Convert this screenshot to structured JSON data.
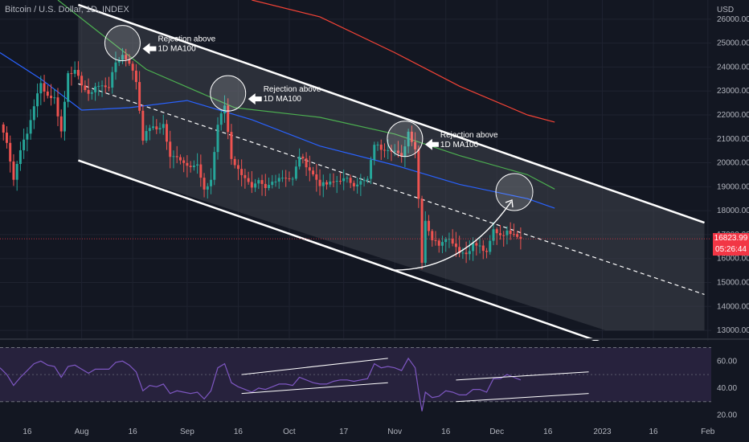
{
  "symbol": {
    "title": "Bitcoin / U.S. Dollar, 1D, INDEX",
    "currency": "USD"
  },
  "price_tag": {
    "price": "16823.99",
    "countdown": "05:26:44"
  },
  "colors": {
    "background": "#131722",
    "up_candle": "#26a69a",
    "down_candle": "#ef5350",
    "channel_fill": "#40434c",
    "channel_line": "#ffffff",
    "ma_green": "#4caf50",
    "ma_blue": "#2962ff",
    "ma_red": "#f44336",
    "rsi_line": "#7e57c2",
    "rsi_band": "#2a2440",
    "price_tag": "#f23645"
  },
  "annotations": [
    {
      "label": [
        "Rejection above",
        "1D MA100"
      ],
      "date": "2022-08-13",
      "price": 25000
    },
    {
      "label": [
        "Rejection above",
        "1D MA100"
      ],
      "date": "2022-09-13",
      "price": 22900
    },
    {
      "label": [
        "Rejection above",
        "1D MA100"
      ],
      "date": "2022-11-04",
      "price": 21000
    }
  ],
  "chart_data": [
    {
      "type": "candlestick",
      "title": "Bitcoin / U.S. Dollar, 1D, INDEX",
      "x_start": "2022-07-08",
      "x_end": "2023-02-02",
      "x_ticks": [
        "16",
        "Aug",
        "16",
        "Sep",
        "16",
        "Oct",
        "17",
        "Nov",
        "16",
        "Dec",
        "16",
        "2023",
        "16",
        "Feb"
      ],
      "x_tick_dates": [
        "2022-07-16",
        "2022-08-01",
        "2022-08-16",
        "2022-09-01",
        "2022-09-16",
        "2022-10-01",
        "2022-10-17",
        "2022-11-01",
        "2022-11-16",
        "2022-12-01",
        "2022-12-16",
        "2023-01-01",
        "2023-01-16",
        "2023-02-01"
      ],
      "ylabel": "USD",
      "ylim": [
        12700,
        26800
      ],
      "y_ticks": [
        13000,
        14000,
        15000,
        16000,
        17000,
        18000,
        19000,
        20000,
        21000,
        22000,
        23000,
        24000,
        25000,
        26000
      ],
      "y_tick_labels": [
        "13000.00",
        "14000.00",
        "15000.00",
        "16000.00",
        "17000.00",
        "18000.00",
        "19000.00",
        "20000.00",
        "21000.00",
        "22000.00",
        "23000.00",
        "24000.00",
        "25000.00",
        "26000.00"
      ],
      "last_price": 16823.99,
      "close_series": [
        [
          "2022-07-08",
          21600
        ],
        [
          "2022-07-10",
          20900
        ],
        [
          "2022-07-12",
          19300
        ],
        [
          "2022-07-14",
          20600
        ],
        [
          "2022-07-16",
          21200
        ],
        [
          "2022-07-18",
          22400
        ],
        [
          "2022-07-20",
          23300
        ],
        [
          "2022-07-22",
          22800
        ],
        [
          "2022-07-24",
          22700
        ],
        [
          "2022-07-26",
          21300
        ],
        [
          "2022-07-28",
          23800
        ],
        [
          "2022-07-30",
          23800
        ],
        [
          "2022-08-01",
          23300
        ],
        [
          "2022-08-03",
          22800
        ],
        [
          "2022-08-05",
          23200
        ],
        [
          "2022-08-07",
          23200
        ],
        [
          "2022-08-09",
          23200
        ],
        [
          "2022-08-11",
          24200
        ],
        [
          "2022-08-13",
          24500
        ],
        [
          "2022-08-15",
          24200
        ],
        [
          "2022-08-17",
          23400
        ],
        [
          "2022-08-19",
          21000
        ],
        [
          "2022-08-21",
          21500
        ],
        [
          "2022-08-23",
          21400
        ],
        [
          "2022-08-25",
          21600
        ],
        [
          "2022-08-27",
          20200
        ],
        [
          "2022-08-29",
          20300
        ],
        [
          "2022-08-31",
          20000
        ],
        [
          "2022-09-02",
          19900
        ],
        [
          "2022-09-04",
          19900
        ],
        [
          "2022-09-06",
          18800
        ],
        [
          "2022-09-08",
          19300
        ],
        [
          "2022-09-10",
          21600
        ],
        [
          "2022-09-12",
          22400
        ],
        [
          "2022-09-14",
          20200
        ],
        [
          "2022-09-16",
          19700
        ],
        [
          "2022-09-18",
          19400
        ],
        [
          "2022-09-20",
          18900
        ],
        [
          "2022-09-22",
          19200
        ],
        [
          "2022-09-24",
          18900
        ],
        [
          "2022-09-26",
          19200
        ],
        [
          "2022-09-28",
          19400
        ],
        [
          "2022-09-30",
          19400
        ],
        [
          "2022-10-02",
          19300
        ],
        [
          "2022-10-04",
          20300
        ],
        [
          "2022-10-06",
          19900
        ],
        [
          "2022-10-08",
          19500
        ],
        [
          "2022-10-10",
          19100
        ],
        [
          "2022-10-12",
          19100
        ],
        [
          "2022-10-14",
          19200
        ],
        [
          "2022-10-16",
          19300
        ],
        [
          "2022-10-18",
          19300
        ],
        [
          "2022-10-20",
          19100
        ],
        [
          "2022-10-22",
          19200
        ],
        [
          "2022-10-24",
          19300
        ],
        [
          "2022-10-26",
          20800
        ],
        [
          "2022-10-28",
          20600
        ],
        [
          "2022-10-30",
          20600
        ],
        [
          "2022-11-01",
          20500
        ],
        [
          "2022-11-03",
          20200
        ],
        [
          "2022-11-05",
          21300
        ],
        [
          "2022-11-07",
          20600
        ],
        [
          "2022-11-08",
          18500
        ],
        [
          "2022-11-09",
          15900
        ],
        [
          "2022-11-10",
          17600
        ],
        [
          "2022-11-12",
          16800
        ],
        [
          "2022-11-14",
          16600
        ],
        [
          "2022-11-16",
          16900
        ],
        [
          "2022-11-18",
          16700
        ],
        [
          "2022-11-20",
          16300
        ],
        [
          "2022-11-22",
          16200
        ],
        [
          "2022-11-24",
          16600
        ],
        [
          "2022-11-26",
          16500
        ],
        [
          "2022-11-28",
          16200
        ],
        [
          "2022-11-30",
          17200
        ],
        [
          "2022-12-02",
          17000
        ],
        [
          "2022-12-04",
          17100
        ],
        [
          "2022-12-06",
          17100
        ],
        [
          "2022-12-08",
          16824
        ]
      ],
      "moving_averages": [
        {
          "color": "#4caf50",
          "points": [
            [
              "2022-07-25",
              26800
            ],
            [
              "2022-08-20",
              23900
            ],
            [
              "2022-09-15",
              22300
            ],
            [
              "2022-10-10",
              21900
            ],
            [
              "2022-11-01",
              21200
            ],
            [
              "2022-11-20",
              20300
            ],
            [
              "2022-12-10",
              19500
            ],
            [
              "2022-12-18",
              18900
            ]
          ]
        },
        {
          "color": "#2962ff",
          "points": [
            [
              "2022-07-08",
              24600
            ],
            [
              "2022-07-20",
              23500
            ],
            [
              "2022-08-01",
              22200
            ],
            [
              "2022-08-15",
              22300
            ],
            [
              "2022-09-01",
              22600
            ],
            [
              "2022-09-20",
              21800
            ],
            [
              "2022-10-10",
              20700
            ],
            [
              "2022-11-01",
              19900
            ],
            [
              "2022-11-20",
              19100
            ],
            [
              "2022-12-10",
              18500
            ],
            [
              "2022-12-18",
              18100
            ]
          ]
        },
        {
          "color": "#f44336",
          "points": [
            [
              "2022-09-20",
              26800
            ],
            [
              "2022-10-10",
              26100
            ],
            [
              "2022-11-01",
              24600
            ],
            [
              "2022-11-20",
              23200
            ],
            [
              "2022-12-10",
              22000
            ],
            [
              "2022-12-18",
              21700
            ]
          ]
        }
      ],
      "channel": {
        "upper": [
          [
            "2022-07-31",
            26600
          ],
          [
            "2023-01-31",
            17500
          ]
        ],
        "lower": [
          [
            "2022-07-31",
            20100
          ],
          [
            "2023-01-31",
            11000
          ]
        ],
        "middle": [
          [
            "2022-07-31",
            23300
          ],
          [
            "2023-01-31",
            14500
          ]
        ],
        "box_bottom": 13000
      }
    },
    {
      "type": "line",
      "ylim": [
        18,
        75
      ],
      "y_ticks": [
        20,
        40,
        60
      ],
      "y_tick_labels": [
        "20.00",
        "40.00",
        "60.00"
      ],
      "band": [
        30,
        70
      ],
      "mid_line": 50,
      "points": [
        [
          "2022-07-08",
          55
        ],
        [
          "2022-07-10",
          50
        ],
        [
          "2022-07-12",
          42
        ],
        [
          "2022-07-14",
          48
        ],
        [
          "2022-07-16",
          53
        ],
        [
          "2022-07-18",
          58
        ],
        [
          "2022-07-20",
          60
        ],
        [
          "2022-07-22",
          57
        ],
        [
          "2022-07-24",
          56
        ],
        [
          "2022-07-26",
          48
        ],
        [
          "2022-07-28",
          56
        ],
        [
          "2022-07-30",
          57
        ],
        [
          "2022-08-01",
          54
        ],
        [
          "2022-08-03",
          51
        ],
        [
          "2022-08-05",
          54
        ],
        [
          "2022-08-07",
          54
        ],
        [
          "2022-08-09",
          54
        ],
        [
          "2022-08-11",
          59
        ],
        [
          "2022-08-13",
          60
        ],
        [
          "2022-08-15",
          57
        ],
        [
          "2022-08-17",
          52
        ],
        [
          "2022-08-19",
          38
        ],
        [
          "2022-08-21",
          42
        ],
        [
          "2022-08-23",
          41
        ],
        [
          "2022-08-25",
          43
        ],
        [
          "2022-08-27",
          36
        ],
        [
          "2022-08-29",
          38
        ],
        [
          "2022-08-31",
          37
        ],
        [
          "2022-09-02",
          36
        ],
        [
          "2022-09-04",
          37
        ],
        [
          "2022-09-06",
          32
        ],
        [
          "2022-09-08",
          38
        ],
        [
          "2022-09-10",
          55
        ],
        [
          "2022-09-12",
          58
        ],
        [
          "2022-09-14",
          44
        ],
        [
          "2022-09-16",
          41
        ],
        [
          "2022-09-18",
          39
        ],
        [
          "2022-09-20",
          37
        ],
        [
          "2022-09-22",
          40
        ],
        [
          "2022-09-24",
          39
        ],
        [
          "2022-09-26",
          41
        ],
        [
          "2022-09-28",
          43
        ],
        [
          "2022-09-30",
          43
        ],
        [
          "2022-10-02",
          42
        ],
        [
          "2022-10-04",
          48
        ],
        [
          "2022-10-06",
          46
        ],
        [
          "2022-10-08",
          44
        ],
        [
          "2022-10-10",
          43
        ],
        [
          "2022-10-12",
          43
        ],
        [
          "2022-10-14",
          45
        ],
        [
          "2022-10-16",
          46
        ],
        [
          "2022-10-18",
          46
        ],
        [
          "2022-10-20",
          45
        ],
        [
          "2022-10-22",
          46
        ],
        [
          "2022-10-24",
          47
        ],
        [
          "2022-10-26",
          58
        ],
        [
          "2022-10-28",
          55
        ],
        [
          "2022-10-30",
          56
        ],
        [
          "2022-11-01",
          55
        ],
        [
          "2022-11-03",
          53
        ],
        [
          "2022-11-05",
          62
        ],
        [
          "2022-11-07",
          55
        ],
        [
          "2022-11-08",
          38
        ],
        [
          "2022-11-09",
          23
        ],
        [
          "2022-11-10",
          37
        ],
        [
          "2022-11-12",
          33
        ],
        [
          "2022-11-14",
          34
        ],
        [
          "2022-11-16",
          38
        ],
        [
          "2022-11-18",
          37
        ],
        [
          "2022-11-20",
          35
        ],
        [
          "2022-11-22",
          35
        ],
        [
          "2022-11-24",
          39
        ],
        [
          "2022-11-26",
          39
        ],
        [
          "2022-11-28",
          37
        ],
        [
          "2022-11-30",
          47
        ],
        [
          "2022-12-02",
          47
        ],
        [
          "2022-12-04",
          50
        ],
        [
          "2022-12-06",
          48
        ],
        [
          "2022-12-08",
          46
        ]
      ],
      "trend_lines": [
        [
          [
            "2022-09-17",
            50
          ],
          [
            "2022-10-30",
            62
          ]
        ],
        [
          [
            "2022-09-17",
            36
          ],
          [
            "2022-10-30",
            44
          ]
        ],
        [
          [
            "2022-11-19",
            46
          ],
          [
            "2022-12-28",
            52
          ]
        ],
        [
          [
            "2022-11-19",
            30
          ],
          [
            "2022-12-28",
            36
          ]
        ]
      ]
    }
  ]
}
